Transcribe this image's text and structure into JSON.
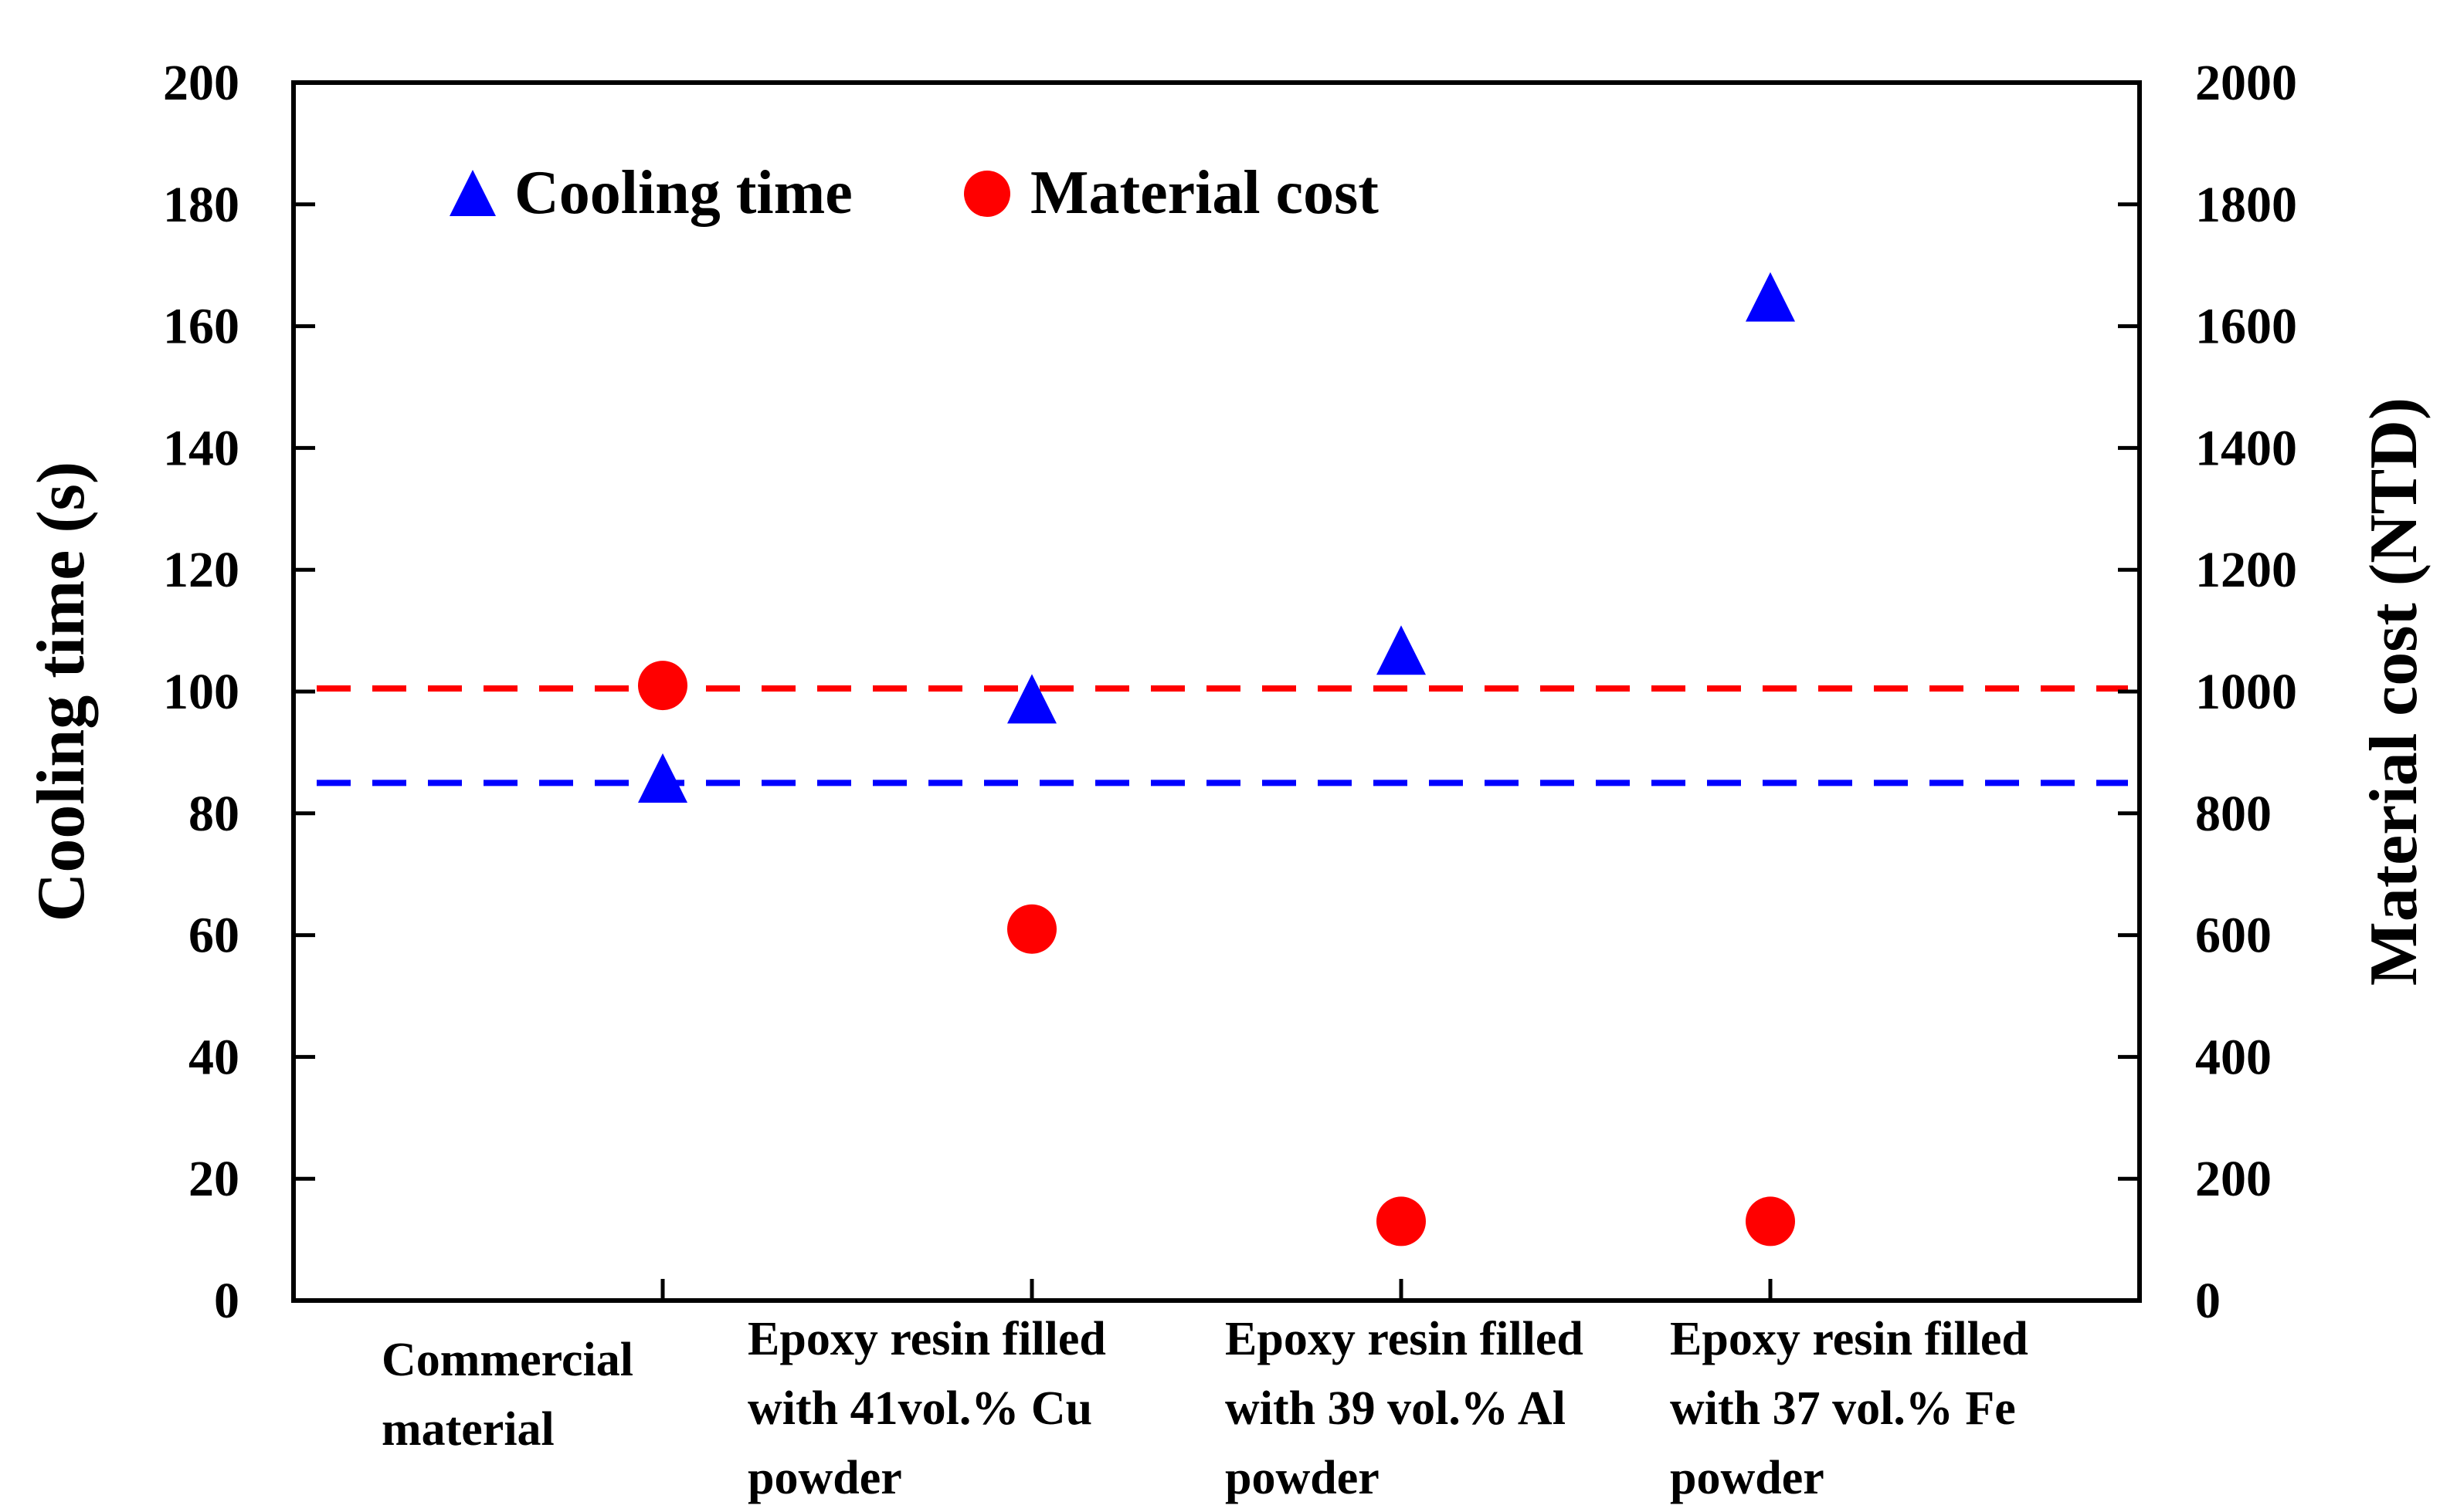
{
  "chart_data": {
    "type": "scatter",
    "categories": [
      [
        "Commercial",
        "material"
      ],
      [
        "Epoxy resin filled",
        "with 41vol.% Cu",
        "powder"
      ],
      [
        "Epoxy resin filled",
        "with 39 vol.% Al",
        "powder"
      ],
      [
        "Epoxy resin filled",
        "with 37 vol.% Fe",
        "powder"
      ]
    ],
    "ylabel": "Cooling time (s)",
    "y2label": "Material cost (NTD)",
    "ylim": [
      0,
      200
    ],
    "y2lim": [
      0,
      2000
    ],
    "yticks": [
      "0",
      "20",
      "40",
      "60",
      "80",
      "100",
      "120",
      "140",
      "160",
      "180",
      "200"
    ],
    "y2ticks": [
      "0",
      "200",
      "400",
      "600",
      "800",
      "1000",
      "1200",
      "1400",
      "1600",
      "1800",
      "2000"
    ],
    "series": [
      {
        "name": "Cooling time",
        "axis": "left",
        "marker": "triangle",
        "color": "#0000ff",
        "values": [
          85,
          98,
          106,
          164
        ]
      },
      {
        "name": "Material cost",
        "axis": "right",
        "marker": "circle",
        "color": "#ff0000",
        "values": [
          1010,
          610,
          130,
          130
        ]
      }
    ],
    "reference_lines": [
      {
        "series": "Cooling time",
        "axis": "left",
        "value": 85,
        "color": "#0000ff",
        "style": "dashed"
      },
      {
        "series": "Material cost",
        "axis": "right",
        "value": 1005,
        "color": "#ff0000",
        "style": "dashed"
      }
    ],
    "legend": {
      "position": "top-left",
      "items": [
        {
          "label": "Cooling time",
          "marker": "triangle",
          "color": "#0000ff"
        },
        {
          "label": "Material cost",
          "marker": "circle",
          "color": "#ff0000"
        }
      ]
    },
    "grid": false
  }
}
